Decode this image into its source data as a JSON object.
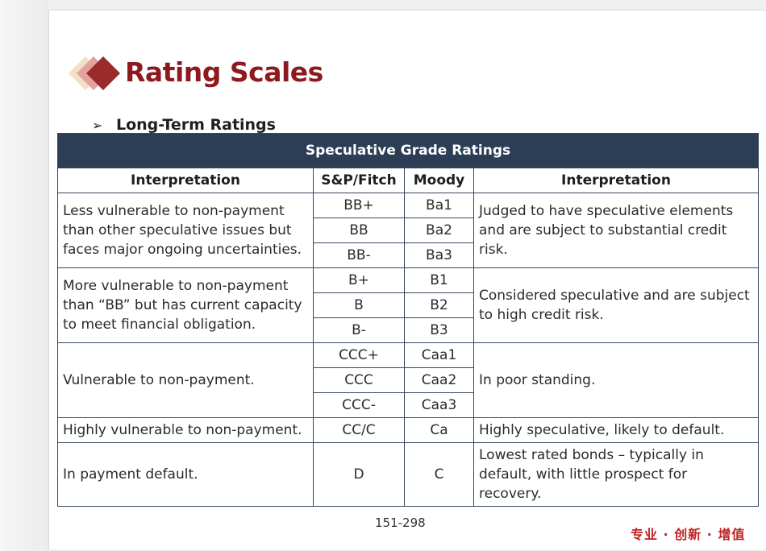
{
  "title": "Rating Scales",
  "subheading": "Long-Term Ratings",
  "table": {
    "band_title": "Speculative Grade Ratings",
    "headers": [
      "Interpretation",
      "S&P/Fitch",
      "Moody",
      "Interpretation"
    ],
    "groups": [
      {
        "left": "Less vulnerable to non-payment than other speculative issues but faces major ongoing uncertainties.",
        "rows": [
          [
            "BB+",
            "Ba1"
          ],
          [
            "BB",
            "Ba2"
          ],
          [
            "BB-",
            "Ba3"
          ]
        ],
        "right": "Judged to have speculative elements and are subject to substantial credit risk."
      },
      {
        "left": "More vulnerable to non-payment than “BB” but has current capacity to meet financial obligation.",
        "rows": [
          [
            "B+",
            "B1"
          ],
          [
            "B",
            "B2"
          ],
          [
            "B-",
            "B3"
          ]
        ],
        "right": "Considered speculative and are subject to high credit risk."
      },
      {
        "left": "Vulnerable to non-payment.",
        "rows": [
          [
            "CCC+",
            "Caa1"
          ],
          [
            "CCC",
            "Caa2"
          ],
          [
            "CCC-",
            "Caa3"
          ]
        ],
        "right": "In poor standing."
      },
      {
        "left": "Highly vulnerable to non-payment.",
        "rows": [
          [
            "CC/C",
            "Ca"
          ]
        ],
        "right": "Highly speculative, likely to default."
      },
      {
        "left": "In payment default.",
        "rows": [
          [
            "D",
            "C"
          ]
        ],
        "right": "Lowest rated bonds – typically in default, with little prospect for recovery."
      }
    ]
  },
  "page_number": "151-298",
  "slogan": "专业 · 创新 · 增值",
  "colors": {
    "title": "#8e1a1f",
    "band": "#2c3e55",
    "border": "#35485e",
    "slogan": "#c0211f"
  }
}
